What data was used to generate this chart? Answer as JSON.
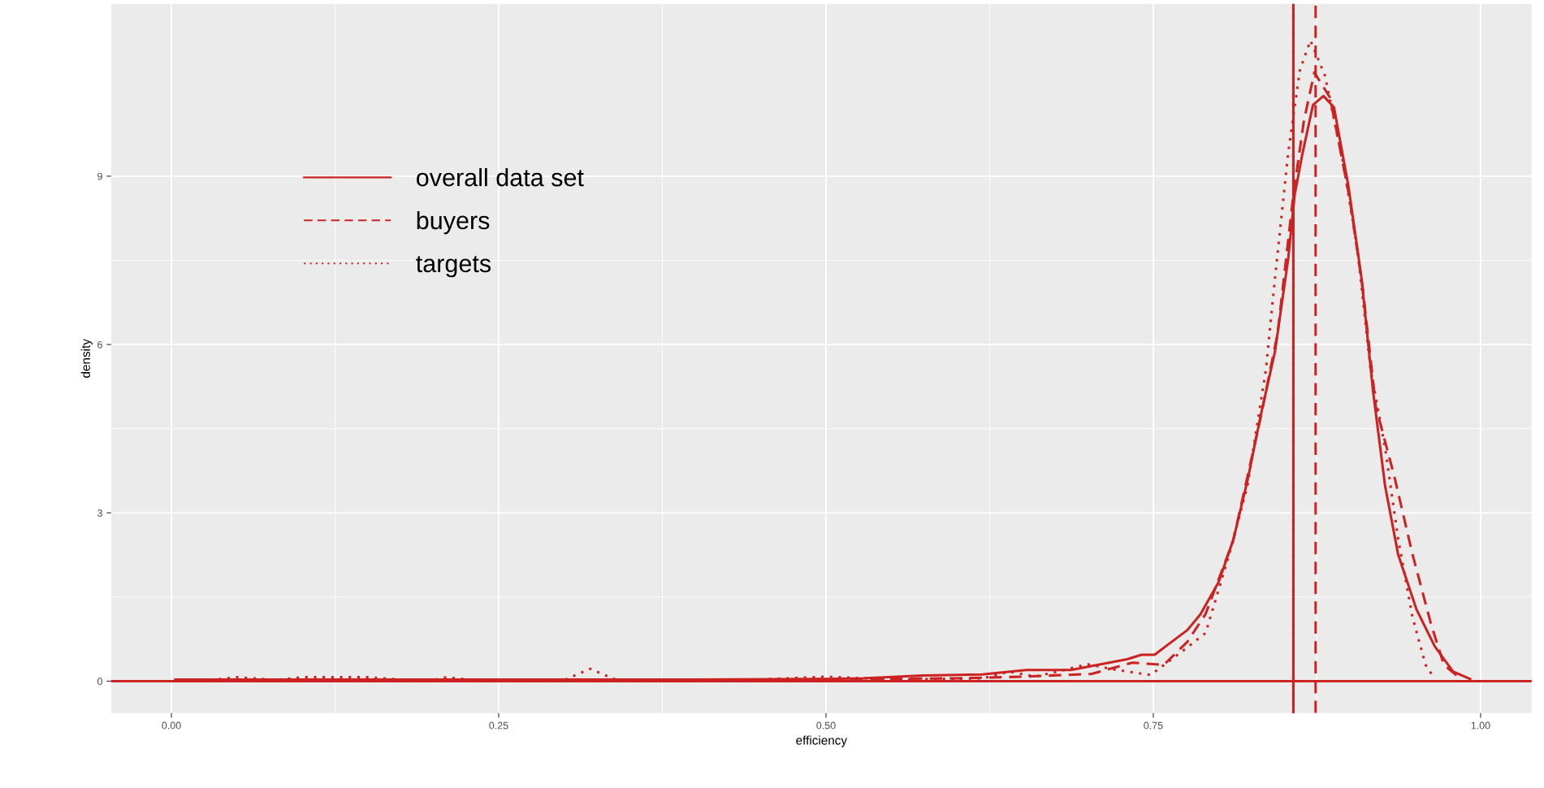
{
  "chart_data": {
    "type": "line",
    "xlabel": "efficiency",
    "ylabel": "density",
    "xlim": [
      -0.046,
      1.039
    ],
    "ylim": [
      -0.57,
      12.07
    ],
    "xticks": [
      {
        "value": 0,
        "label": "0.00"
      },
      {
        "value": 0.25,
        "label": "0.25"
      },
      {
        "value": 0.5,
        "label": "0.50"
      },
      {
        "value": 0.75,
        "label": "0.75"
      },
      {
        "value": 1,
        "label": "1.00"
      }
    ],
    "yticks": [
      0,
      3,
      6,
      9
    ],
    "grid": true,
    "legend": "top left",
    "series": [
      {
        "name": "overall data set",
        "color": "#cc2222",
        "line_style": "solid",
        "x": [
          0.003,
          0.1,
          0.2,
          0.3,
          0.4,
          0.5,
          0.528,
          0.574,
          0.619,
          0.653,
          0.687,
          0.73,
          0.741,
          0.751,
          0.764,
          0.776,
          0.786,
          0.8,
          0.811,
          0.822,
          0.832,
          0.843,
          0.853,
          0.858,
          0.864,
          0.872,
          0.88,
          0.888,
          0.899,
          0.909,
          0.918,
          0.927,
          0.937,
          0.951,
          0.965,
          0.979,
          0.992
        ],
        "values": [
          0.03,
          0.03,
          0.03,
          0.03,
          0.03,
          0.04,
          0.05,
          0.1,
          0.12,
          0.2,
          0.2,
          0.39,
          0.47,
          0.47,
          0.7,
          0.91,
          1.19,
          1.77,
          2.51,
          3.58,
          4.73,
          5.88,
          7.52,
          8.67,
          9.41,
          10.27,
          10.43,
          10.23,
          8.83,
          7.19,
          5.14,
          3.49,
          2.26,
          1.28,
          0.62,
          0.17,
          0.04
        ]
      },
      {
        "name": "buyers",
        "color": "#cc2222",
        "line_style": "dashed",
        "x": [
          0.003,
          0.2,
          0.4,
          0.6,
          0.65,
          0.703,
          0.734,
          0.758,
          0.776,
          0.79,
          0.811,
          0.832,
          0.845,
          0.857,
          0.865,
          0.873,
          0.885,
          0.9,
          0.91,
          0.92,
          0.934,
          0.948,
          0.962,
          0.972,
          0.985
        ],
        "values": [
          0.02,
          0.02,
          0.02,
          0.05,
          0.08,
          0.13,
          0.33,
          0.29,
          0.7,
          1.2,
          2.5,
          4.7,
          6.2,
          8.67,
          9.98,
          10.85,
          10.4,
          8.6,
          7.0,
          4.89,
          3.66,
          2.26,
          1.03,
          0.29,
          0.04
        ]
      },
      {
        "name": "targets",
        "color": "#cc2222",
        "line_style": "dotted",
        "x": [
          0.003,
          0.03,
          0.05,
          0.08,
          0.1,
          0.15,
          0.18,
          0.2,
          0.21,
          0.23,
          0.3,
          0.32,
          0.34,
          0.45,
          0.5,
          0.55,
          0.62,
          0.64,
          0.66,
          0.7,
          0.722,
          0.748,
          0.776,
          0.79,
          0.808,
          0.822,
          0.836,
          0.843,
          0.853,
          0.862,
          0.87,
          0.881,
          0.895,
          0.906,
          0.916,
          0.927,
          0.937,
          0.948,
          0.958,
          0.965
        ],
        "values": [
          0.02,
          0.02,
          0.07,
          0.02,
          0.07,
          0.07,
          0.02,
          0.02,
          0.07,
          0.02,
          0.02,
          0.22,
          0.02,
          0.03,
          0.08,
          0.03,
          0.05,
          0.17,
          0.08,
          0.3,
          0.2,
          0.11,
          0.6,
          0.86,
          2.26,
          3.49,
          5.55,
          7.19,
          9.41,
          10.89,
          11.42,
          10.8,
          9.24,
          7.69,
          5.55,
          4.17,
          2.54,
          1.14,
          0.29,
          0.04
        ]
      }
    ],
    "ref_lines": [
      {
        "axis": "x",
        "value": 0.857,
        "color": "#cc2222",
        "line_style": "solid"
      },
      {
        "axis": "x",
        "value": 0.857,
        "color": "#cc2222",
        "line_style": "dotted"
      },
      {
        "axis": "x",
        "value": 0.874,
        "color": "#cc2222",
        "line_style": "dashed"
      },
      {
        "axis": "y",
        "value": 0,
        "color": "#cc2222",
        "line_style": "solid"
      }
    ]
  }
}
